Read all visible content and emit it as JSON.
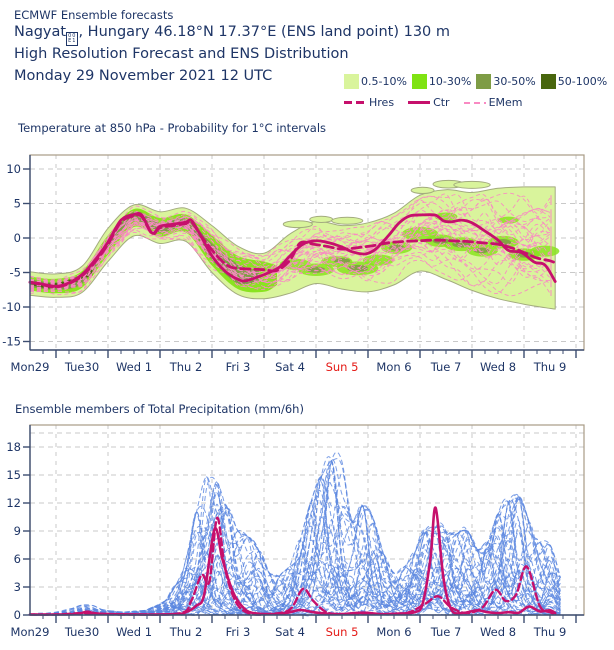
{
  "header": {
    "product": "ECMWF Ensemble forecasts",
    "station_prefix": "Nagyat",
    "missing_glyph_top": "00",
    "missing_glyph_bottom": "E1",
    "station_suffix": ", Hungary 46.18°N 17.37°E (ENS land point) 130 m",
    "subtitle": "High Resolution Forecast and ENS Distribution",
    "run_date": "Monday 29 November 2021 12 UTC"
  },
  "legend": {
    "bands": [
      {
        "label": "0.5-10%",
        "color": "#d9f49c"
      },
      {
        "label": "10-30%",
        "color": "#7fe312"
      },
      {
        "label": "30-50%",
        "color": "#7e9c45"
      },
      {
        "label": "50-100%",
        "color": "#48660d"
      }
    ],
    "lines": [
      {
        "label": "Hres",
        "style": "dashed",
        "color": "#c6106c"
      },
      {
        "label": "Ctr",
        "style": "solid",
        "color": "#c6106c"
      },
      {
        "label": "EMem",
        "style": "dashed-thin",
        "color": "#f98ac3"
      }
    ]
  },
  "colors": {
    "navy": "#1e3566",
    "red": "#e41b17",
    "magenta": "#c6106c",
    "pink": "#f98ac3",
    "blue": "#5b87e0",
    "grid": "#c9c9c9",
    "frame": "#a89b86",
    "axis": "#3c4d70",
    "band_light": "#d9f49c",
    "band_bright": "#8ae320",
    "band_olive": "#7e9c45",
    "band_dark": "#48660d",
    "band_edge": "#a3ab7f"
  },
  "x_axis": {
    "labels": [
      {
        "text": "Mon29",
        "day": 0,
        "red": false
      },
      {
        "text": "Tue30",
        "day": 1,
        "red": false
      },
      {
        "text": "Wed 1",
        "day": 2,
        "red": false
      },
      {
        "text": "Thu 2",
        "day": 3,
        "red": false
      },
      {
        "text": "Fri 3",
        "day": 4,
        "red": false
      },
      {
        "text": "Sat 4",
        "day": 5,
        "red": false
      },
      {
        "text": "Sun 5",
        "day": 6,
        "red": true
      },
      {
        "text": "Mon 6",
        "day": 7,
        "red": false
      },
      {
        "text": "Tue 7",
        "day": 8,
        "red": false
      },
      {
        "text": "Wed 8",
        "day": 9,
        "red": false
      },
      {
        "text": "Thu 9",
        "day": 10,
        "red": false
      }
    ],
    "start_day": 0,
    "frame_end_day": 10.65,
    "data_end_day": 10.1,
    "minor_step_days": 0.25,
    "major_tick_offset": 0.5
  },
  "chart_data": [
    {
      "type": "line",
      "subtype": "ensemble-plume",
      "title": "Temperature at 850 hPa - Probability for 1°C intervals",
      "xlabel": "",
      "ylabel": "",
      "y_ticks": [
        10,
        5,
        0,
        -5,
        -10,
        -15
      ],
      "ylim": [
        -16.4,
        12.0
      ],
      "series_ctr": {
        "name": "Ctr",
        "x": [
          0,
          0.25,
          0.5,
          0.75,
          1,
          1.25,
          1.5,
          1.75,
          2,
          2.15,
          2.35,
          2.5,
          2.75,
          3,
          3.1,
          3.25,
          3.5,
          3.75,
          4,
          4.15,
          4.4,
          4.6,
          4.8,
          5,
          5.25,
          5.5,
          5.75,
          6,
          6.2,
          6.45,
          6.65,
          6.9,
          7.1,
          7.3,
          7.55,
          7.8,
          7.95,
          8.1,
          8.3,
          8.5,
          8.75,
          9,
          9.2,
          9.45,
          9.7,
          9.9,
          10.1
        ],
        "y": [
          -6.4,
          -6.7,
          -7,
          -6.5,
          -5.3,
          -3.2,
          -0.6,
          2.6,
          3.4,
          3.3,
          0.7,
          1.7,
          2,
          2.3,
          2.6,
          0.8,
          -2.6,
          -4.8,
          -6,
          -6.2,
          -5.6,
          -5,
          -4.2,
          -2.6,
          -0.9,
          -0.4,
          -0.7,
          -1.3,
          -2,
          -2.3,
          -1.6,
          0.4,
          2.2,
          3.2,
          3.35,
          3.3,
          2.5,
          2.35,
          2.6,
          2.2,
          1,
          -0.3,
          -1.8,
          -2.1,
          -3.5,
          -3.9,
          -6.3
        ]
      },
      "series_hres": {
        "name": "Hres",
        "x": [
          0,
          0.25,
          0.5,
          0.75,
          1,
          1.25,
          1.5,
          1.75,
          2,
          2.15,
          2.35,
          2.5,
          2.75,
          3,
          3.1,
          3.3,
          3.55,
          3.8,
          4,
          4.25,
          4.5,
          4.75,
          5,
          5.2,
          5.45,
          5.7,
          6,
          6.3,
          6.6,
          6.9,
          7.2,
          7.5,
          7.8,
          8.1,
          8.4,
          8.7,
          9,
          9.25,
          9.5,
          9.75,
          10,
          10.1
        ],
        "y": [
          -6.4,
          -6.8,
          -7.1,
          -6.6,
          -5.5,
          -3.5,
          -0.9,
          2.3,
          3.2,
          3.1,
          0.6,
          1.5,
          1.8,
          2.1,
          2.4,
          0.2,
          -2.2,
          -4,
          -4.4,
          -4.5,
          -4.6,
          -4.7,
          -3.2,
          -0.7,
          -0.9,
          -1.2,
          -1.6,
          -1.4,
          -1.1,
          -0.7,
          -0.5,
          -0.4,
          -0.3,
          -0.4,
          -0.5,
          -0.7,
          -0.9,
          -1.4,
          -2.1,
          -2.9,
          -3.3,
          -3.6
        ]
      },
      "band_x": [
        0,
        0.5,
        1,
        1.5,
        2,
        2.5,
        3,
        3.5,
        4,
        4.5,
        5,
        5.5,
        6,
        6.5,
        7,
        7.5,
        8,
        8.5,
        9,
        9.5,
        10,
        10.1
      ],
      "band_outer_hi": [
        -4.9,
        -5.2,
        -4.1,
        1.4,
        4.8,
        3.8,
        4.3,
        1.8,
        -1.2,
        -2.2,
        0.6,
        2.4,
        1.8,
        2.2,
        3.6,
        6.2,
        7.0,
        6.6,
        7.2,
        7.4,
        7.4,
        7.4
      ],
      "band_outer_lo": [
        -8.3,
        -8.6,
        -7.9,
        -3.4,
        0.3,
        -0.8,
        -0.5,
        -5.0,
        -8.2,
        -8.8,
        -8.0,
        -6.6,
        -7.4,
        -7.8,
        -6.8,
        -4.8,
        -6.0,
        -7.6,
        -8.8,
        -9.6,
        -10.2,
        -10.3
      ],
      "band_mid": {
        "x": [
          0,
          0.5,
          1,
          1.5,
          2,
          2.5,
          3,
          3.5,
          4,
          4.5,
          4.75
        ],
        "hi": [
          -5.6,
          -5.9,
          -4.8,
          0.4,
          4.2,
          2.9,
          3.4,
          0.4,
          -2.6,
          -3.4,
          -4.0
        ],
        "lo": [
          -7.6,
          -8.0,
          -7.2,
          -2.4,
          1.6,
          0.2,
          0.8,
          -4.0,
          -7.4,
          -7.8,
          -6.8
        ]
      },
      "band_core": {
        "x": [
          0,
          0.5,
          1,
          1.5,
          2,
          2.5,
          3,
          3.5,
          4,
          4.4
        ],
        "hi": [
          -6.0,
          -6.4,
          -5.3,
          -0.3,
          3.8,
          2.2,
          2.8,
          -0.8,
          -3.8,
          -4.8
        ],
        "lo": [
          -7.1,
          -7.5,
          -6.6,
          -1.7,
          2.4,
          0.8,
          1.4,
          -3.2,
          -6.6,
          -6.2
        ]
      },
      "band_dark": {
        "x": [
          0,
          0.4,
          0.8,
          1.2
        ],
        "hi": [
          -6.2,
          -6.6,
          -5.9,
          -4.6
        ],
        "lo": [
          -6.8,
          -7.3,
          -6.6,
          -5.4
        ]
      },
      "light_blobs": [
        {
          "x": 5.15,
          "y": 2.0,
          "rx": 0.28,
          "ry": 0.5
        },
        {
          "x": 5.6,
          "y": 2.7,
          "rx": 0.22,
          "ry": 0.45
        },
        {
          "x": 6.1,
          "y": 2.5,
          "rx": 0.3,
          "ry": 0.5
        },
        {
          "x": 8.05,
          "y": 7.8,
          "rx": 0.3,
          "ry": 0.55
        },
        {
          "x": 8.5,
          "y": 7.7,
          "rx": 0.35,
          "ry": 0.5
        },
        {
          "x": 7.55,
          "y": 6.9,
          "rx": 0.22,
          "ry": 0.45
        }
      ],
      "mid_patches": [
        {
          "x": 5.1,
          "y": -3.8,
          "rx": 0.3,
          "ry": 0.8
        },
        {
          "x": 5.5,
          "y": -4.6,
          "rx": 0.35,
          "ry": 0.9
        },
        {
          "x": 5.9,
          "y": -3.4,
          "rx": 0.3,
          "ry": 0.8
        },
        {
          "x": 6.3,
          "y": -4.4,
          "rx": 0.4,
          "ry": 1.0
        },
        {
          "x": 6.7,
          "y": -3.2,
          "rx": 0.3,
          "ry": 0.8
        },
        {
          "x": 7.05,
          "y": -1.4,
          "rx": 0.3,
          "ry": 0.9
        },
        {
          "x": 7.5,
          "y": 0.6,
          "rx": 0.35,
          "ry": 1.0
        },
        {
          "x": 7.9,
          "y": -0.4,
          "rx": 0.3,
          "ry": 0.9
        },
        {
          "x": 8.3,
          "y": -0.9,
          "rx": 0.35,
          "ry": 1.0
        },
        {
          "x": 8.7,
          "y": -1.8,
          "rx": 0.3,
          "ry": 0.9
        },
        {
          "x": 9.1,
          "y": -0.6,
          "rx": 0.3,
          "ry": 0.9
        },
        {
          "x": 9.5,
          "y": -2.4,
          "rx": 0.3,
          "ry": 0.9
        },
        {
          "x": 9.9,
          "y": -1.9,
          "rx": 0.28,
          "ry": 0.8
        },
        {
          "x": 8.0,
          "y": 3.1,
          "rx": 0.22,
          "ry": 0.6
        },
        {
          "x": 9.2,
          "y": 2.6,
          "rx": 0.2,
          "ry": 0.5
        }
      ],
      "olive_patches": [
        {
          "x": 5.5,
          "y": -4.6,
          "rx": 0.18,
          "ry": 0.45
        },
        {
          "x": 6.3,
          "y": -4.4,
          "rx": 0.2,
          "ry": 0.5
        },
        {
          "x": 7.05,
          "y": -1.4,
          "rx": 0.15,
          "ry": 0.45
        },
        {
          "x": 7.9,
          "y": -0.4,
          "rx": 0.16,
          "ry": 0.45
        },
        {
          "x": 8.3,
          "y": -0.9,
          "rx": 0.18,
          "ry": 0.5
        },
        {
          "x": 9.1,
          "y": -0.6,
          "rx": 0.15,
          "ry": 0.45
        },
        {
          "x": 9.5,
          "y": -2.4,
          "rx": 0.15,
          "ry": 0.45
        },
        {
          "x": 6.0,
          "y": -3.3,
          "rx": 0.16,
          "ry": 0.4
        },
        {
          "x": 8.68,
          "y": -1.8,
          "rx": 0.15,
          "ry": 0.4
        }
      ],
      "emem_member_count": 30
    },
    {
      "type": "line",
      "subtype": "ensemble-members",
      "title": "Ensemble members of Total Precipitation (mm/6h)",
      "xlabel": "",
      "ylabel": "",
      "y_ticks": [
        0,
        3,
        6,
        9,
        12,
        15,
        18
      ],
      "ylim": [
        0,
        20.4
      ],
      "extra_gridline": 19.5,
      "series_ctr": {
        "name": "Ctr",
        "x": [
          0,
          0.5,
          0.9,
          1.1,
          1.3,
          2.0,
          2.8,
          3.0,
          3.2,
          3.35,
          3.55,
          3.7,
          3.9,
          4.1,
          4.3,
          4.75,
          5.0,
          5.2,
          5.45,
          5.7,
          6.0,
          6.4,
          6.75,
          7.1,
          7.4,
          7.55,
          7.7,
          7.8,
          7.95,
          8.1,
          8.3,
          8.6,
          8.8,
          9.0,
          9.2,
          9.4,
          9.6,
          9.8,
          10.0,
          10.1
        ],
        "y": [
          0.05,
          0.05,
          0.1,
          0.35,
          0.15,
          0.05,
          0.1,
          0.3,
          1.0,
          2.2,
          9.2,
          6.0,
          2.5,
          0.8,
          0.2,
          0.1,
          0.3,
          0.55,
          0.3,
          0.15,
          0.1,
          0.25,
          0.1,
          0.15,
          0.3,
          1.2,
          6.0,
          11.5,
          4.0,
          0.6,
          0.2,
          0.5,
          0.3,
          0.2,
          0.3,
          0.25,
          0.9,
          0.4,
          0.5,
          0.2
        ]
      },
      "series_hres": {
        "name": "Hres",
        "x": [
          0,
          0.5,
          1.0,
          1.2,
          2.0,
          2.9,
          3.1,
          3.3,
          3.45,
          3.6,
          3.75,
          3.95,
          4.2,
          4.6,
          5.0,
          5.25,
          5.45,
          5.7,
          6.0,
          6.5,
          7.0,
          7.3,
          7.6,
          7.85,
          8.1,
          8.4,
          8.7,
          8.95,
          9.15,
          9.35,
          9.55,
          9.8,
          10.0,
          10.1
        ],
        "y": [
          0.05,
          0.05,
          0.2,
          0.1,
          0.05,
          0.2,
          1.5,
          4.3,
          3.6,
          10.4,
          5.0,
          1.5,
          0.2,
          0.1,
          0.6,
          2.8,
          1.5,
          0.3,
          0.1,
          0.1,
          0.1,
          0.3,
          1.2,
          2.0,
          0.8,
          0.2,
          0.8,
          2.7,
          1.5,
          2.2,
          5.2,
          1.0,
          0.3,
          0.1
        ]
      },
      "member_envelope": {
        "x": [
          0,
          0.5,
          0.9,
          1.1,
          1.35,
          1.75,
          2.25,
          2.6,
          2.9,
          3.1,
          3.3,
          3.5,
          3.75,
          4.0,
          4.3,
          4.6,
          4.9,
          5.2,
          5.5,
          5.75,
          5.95,
          6.2,
          6.5,
          6.75,
          7.0,
          7.3,
          7.6,
          7.85,
          8.1,
          8.4,
          8.7,
          8.95,
          9.2,
          9.45,
          9.7,
          10.0,
          10.2
        ],
        "max": [
          0.15,
          0.3,
          0.8,
          1.3,
          0.6,
          0.3,
          0.5,
          1.5,
          4.0,
          8.0,
          14.0,
          15.6,
          12.0,
          9.0,
          8.0,
          4.5,
          4.0,
          8.0,
          14.0,
          16.0,
          18.0,
          10.0,
          12.5,
          7.0,
          4.5,
          5.5,
          9.0,
          9.5,
          8.5,
          9.0,
          6.0,
          10.5,
          12.0,
          12.8,
          8.0,
          7.5,
          4.0
        ]
      },
      "member_count": 46
    }
  ]
}
